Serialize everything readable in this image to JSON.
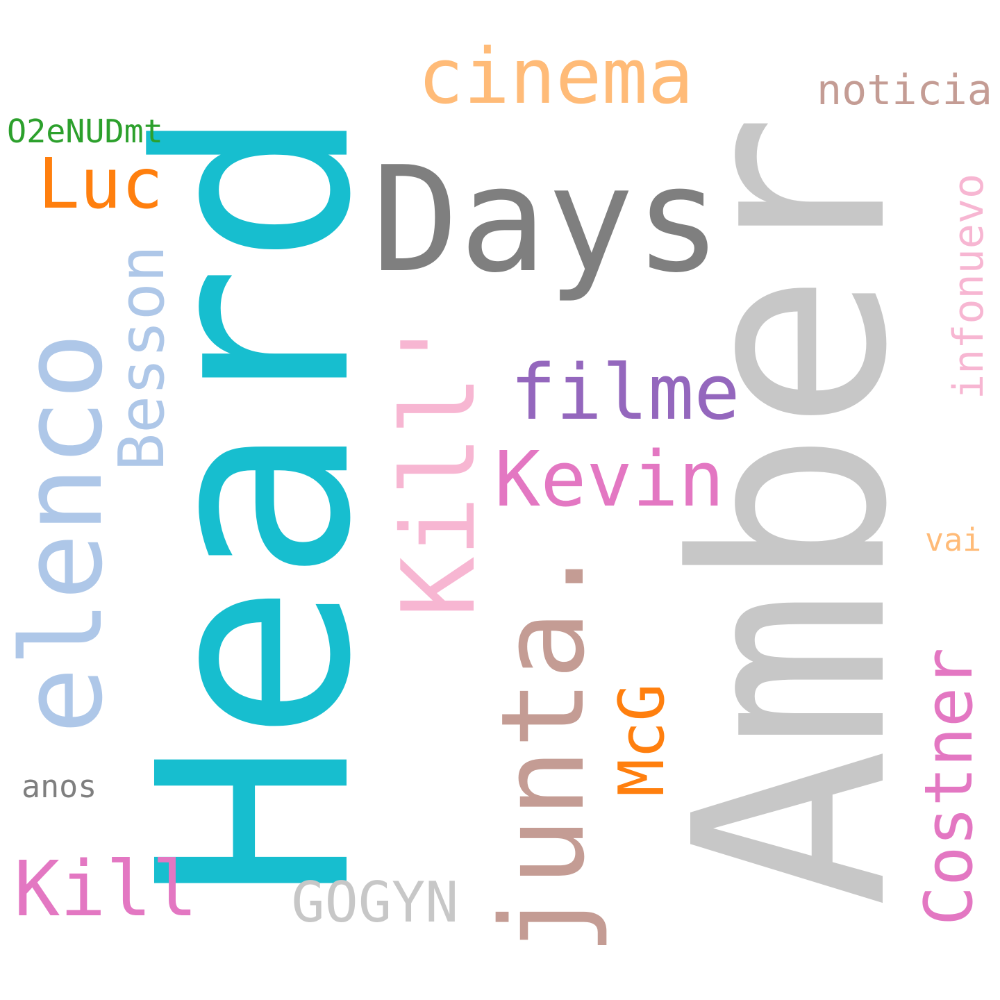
{
  "words": [
    {
      "id": "amber",
      "text": "Amber",
      "color": "#c7c7c7"
    },
    {
      "id": "heard",
      "text": "Heard",
      "color": "#17becf"
    },
    {
      "id": "days",
      "text": "Days",
      "color": "#7f7f7f"
    },
    {
      "id": "cinema",
      "text": "cinema",
      "color": "#ffbb78"
    },
    {
      "id": "elenco",
      "text": "elenco",
      "color": "#aec7e8"
    },
    {
      "id": "kill-quoted",
      "text": "Kill'",
      "color": "#f7b6d2"
    },
    {
      "id": "junta",
      "text": "junta.",
      "color": "#c49c94"
    },
    {
      "id": "besson",
      "text": "Besson",
      "color": "#aec7e8"
    },
    {
      "id": "filme",
      "text": "filme",
      "color": "#9467bd"
    },
    {
      "id": "kevin",
      "text": "Kevin",
      "color": "#e377c2"
    },
    {
      "id": "costner",
      "text": "Costner",
      "color": "#e377c2"
    },
    {
      "id": "kill",
      "text": "Kill",
      "color": "#e377c2"
    },
    {
      "id": "luc",
      "text": "Luc",
      "color": "#ff7f0e"
    },
    {
      "id": "mcg",
      "text": "McG",
      "color": "#ff7f0e"
    },
    {
      "id": "infonuevo",
      "text": "infonuevo",
      "color": "#f7b6d2"
    },
    {
      "id": "noticia",
      "text": "noticia",
      "color": "#c49c94"
    },
    {
      "id": "gogyn",
      "text": "GOGYN",
      "color": "#c7c7c7"
    },
    {
      "id": "o2enudmt",
      "text": "O2eNUDmt",
      "color": "#2ca02c"
    },
    {
      "id": "anos",
      "text": "anos",
      "color": "#7f7f7f"
    },
    {
      "id": "vai",
      "text": "vai",
      "color": "#ffbb78"
    }
  ]
}
